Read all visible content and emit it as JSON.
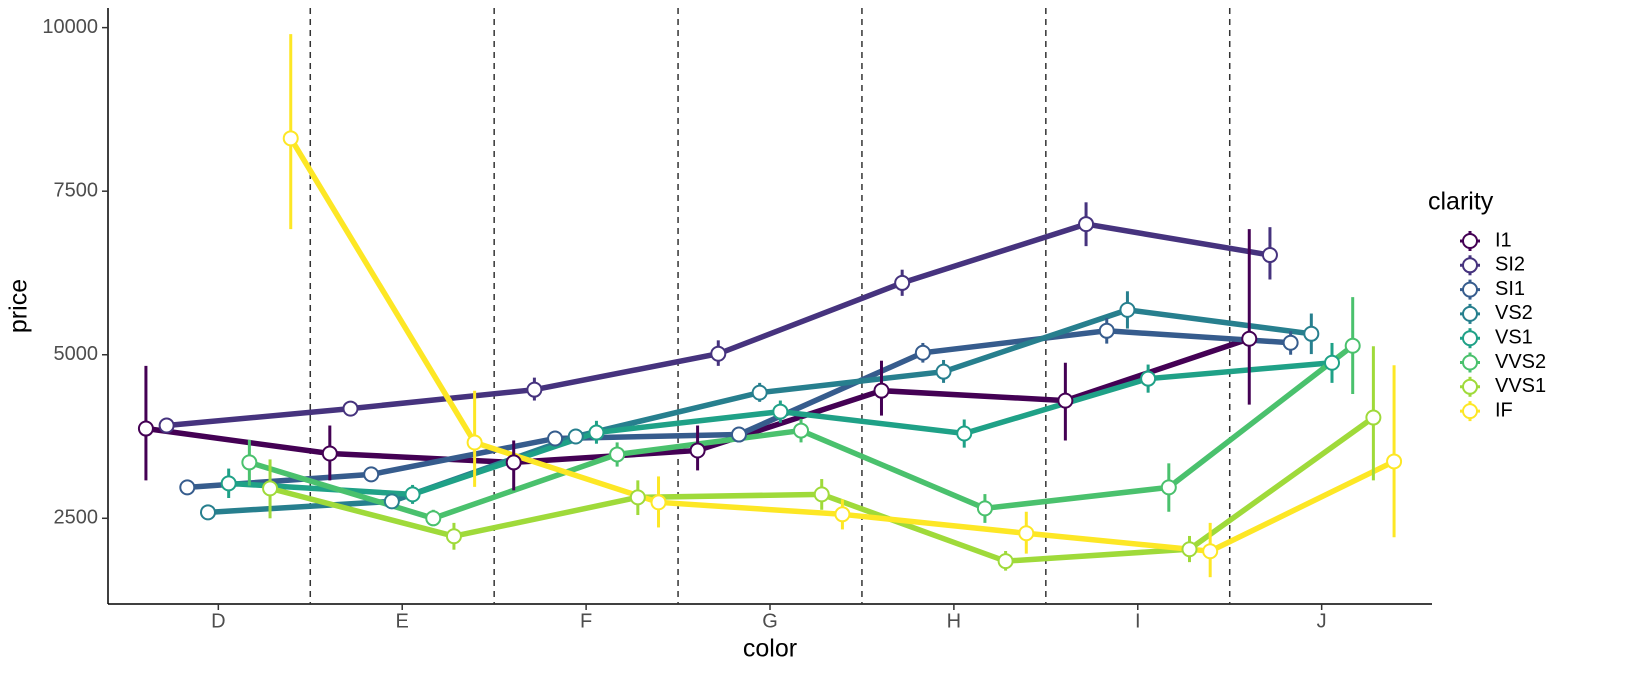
{
  "chart_data": {
    "type": "pointrange-line",
    "x_label": "color",
    "y_label": "price",
    "legend_title": "clarity",
    "legend_position": "right",
    "categories": [
      "D",
      "E",
      "F",
      "G",
      "H",
      "I",
      "J"
    ],
    "ylim": [
      1190,
      10300
    ],
    "yticks": [
      2500,
      5000,
      7500,
      10000
    ],
    "series": [
      {
        "name": "I1",
        "color": "#440154",
        "values": [
          3872,
          3490,
          3354,
          3537,
          4451,
          4299,
          5244
        ],
        "lower": [
          3080,
          3079,
          2927,
          3232,
          4070,
          3689,
          4238
        ],
        "upper": [
          4830,
          3918,
          3689,
          3918,
          4909,
          4878,
          6920
        ]
      },
      {
        "name": "SI2",
        "color": "#46337E",
        "values": [
          3918,
          4177,
          4466,
          5015,
          6098,
          6997,
          6524
        ],
        "lower": [
          3820,
          4070,
          4300,
          4830,
          5900,
          6660,
          6150
        ],
        "upper": [
          4010,
          4290,
          4650,
          5220,
          6300,
          7330,
          6950
        ]
      },
      {
        "name": "SI1",
        "color": "#365C8D",
        "values": [
          2973,
          3171,
          3720,
          3780,
          5030,
          5366,
          5183
        ],
        "lower": [
          2900,
          3100,
          3630,
          3680,
          4880,
          5170,
          5000
        ],
        "upper": [
          3050,
          3250,
          3810,
          3880,
          5180,
          5560,
          5360
        ]
      },
      {
        "name": "VS2",
        "color": "#277F8E",
        "values": [
          2591,
          2759,
          3750,
          4421,
          4741,
          5686,
          5320
        ],
        "lower": [
          2500,
          2660,
          3640,
          4280,
          4570,
          5400,
          5010
        ],
        "upper": [
          2690,
          2860,
          3860,
          4570,
          4920,
          5970,
          5630
        ]
      },
      {
        "name": "VS1",
        "color": "#1FA187",
        "values": [
          3034,
          2866,
          3811,
          4131,
          3796,
          4634,
          4878
        ],
        "lower": [
          2810,
          2720,
          3640,
          3960,
          3580,
          4420,
          4570
        ],
        "upper": [
          3260,
          3010,
          3990,
          4300,
          4010,
          4850,
          5180
        ]
      },
      {
        "name": "VVS2",
        "color": "#4AC16D",
        "values": [
          3354,
          2500,
          3476,
          3841,
          2652,
          2973,
          5137
        ],
        "lower": [
          3000,
          2380,
          3290,
          3660,
          2430,
          2600,
          4400
        ],
        "upper": [
          3700,
          2630,
          3660,
          4020,
          2870,
          3340,
          5880
        ]
      },
      {
        "name": "VVS1",
        "color": "#9FDA3A",
        "values": [
          2957,
          2226,
          2820,
          2866,
          1845,
          2027,
          4040
        ],
        "lower": [
          2500,
          2020,
          2550,
          2630,
          1700,
          1830,
          3080
        ],
        "upper": [
          3400,
          2430,
          3080,
          3100,
          2000,
          2230,
          5130
        ]
      },
      {
        "name": "IF",
        "color": "#FDE725",
        "values": [
          8308,
          3659,
          2744,
          2561,
          2271,
          1997,
          3369
        ],
        "lower": [
          6920,
          2980,
          2360,
          2330,
          1960,
          1600,
          2210
        ],
        "upper": [
          9900,
          4450,
          3140,
          2790,
          2600,
          2430,
          4840
        ]
      }
    ]
  }
}
